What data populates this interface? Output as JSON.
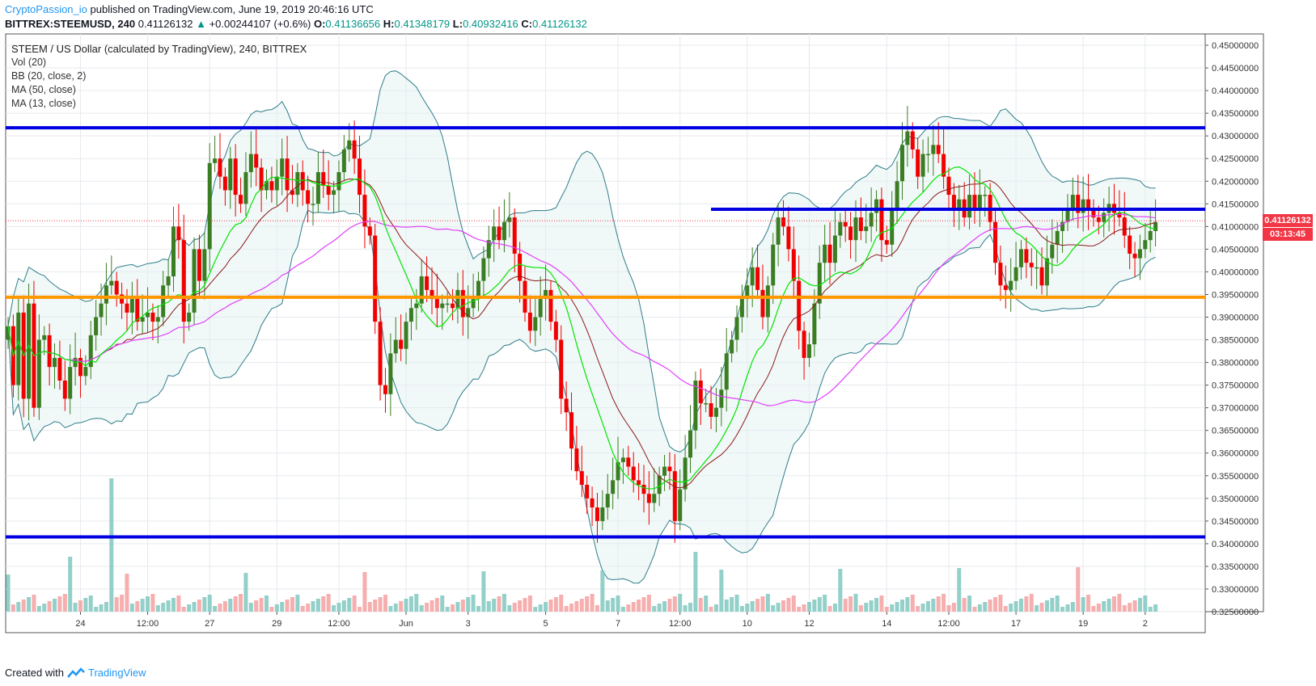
{
  "header": {
    "author": "CryptoPassion_io",
    "published": " published on TradingView.com, June 19, 2019 20:46:16 UTC"
  },
  "symbol_line": {
    "symbol": "BITTREX:STEEMUSD, 240",
    "last": "0.41126132",
    "arrow": "▲",
    "change": "+0.00244107 (+0.6%)",
    "o_label": "O:",
    "o": "0.41136656",
    "h_label": "H:",
    "h": "0.41348179",
    "l_label": "L:",
    "l": "0.40932416",
    "c_label": "C:",
    "c": "0.41126132"
  },
  "legend": {
    "title": "STEEM / US Dollar (calculated by TradingView), 240, BITTREX",
    "vol": "Vol (20)",
    "bb": "BB (20, close, 2)",
    "ma50": "MA (50, close)",
    "ma13": "MA (13, close)"
  },
  "price_tag": {
    "price": "0.41126132",
    "countdown": "03:13:45"
  },
  "footer": {
    "created": "Created with",
    "brand": "TradingView"
  },
  "colors": {
    "up": "#3a7d22",
    "down": "#f00000",
    "blue_line": "#0000e0",
    "orange_line": "#ff9800",
    "bb": "#2e7d8a",
    "ma50": "#e040fb",
    "ma13": "#00e600",
    "ma20": "#8b1a1a",
    "vol_up": "#7fc8c0",
    "vol_down": "#f4a0a0",
    "accent": "#2196f3"
  },
  "chart_data": {
    "type": "candlestick",
    "ylim": [
      0.325,
      0.4525
    ],
    "y_ticks": [
      "0.45000000",
      "0.44500000",
      "0.44000000",
      "0.43500000",
      "0.43000000",
      "0.42500000",
      "0.42000000",
      "0.41500000",
      "0.41000000",
      "0.40500000",
      "0.40000000",
      "0.39500000",
      "0.39000000",
      "0.38500000",
      "0.38000000",
      "0.37500000",
      "0.37000000",
      "0.36500000",
      "0.36000000",
      "0.35500000",
      "0.35000000",
      "0.34500000",
      "0.34000000",
      "0.33500000",
      "0.33000000",
      "0.32500000"
    ],
    "x_ticks": [
      {
        "label": "24",
        "bar": 14
      },
      {
        "label": "12:00",
        "bar": 27
      },
      {
        "label": "27",
        "bar": 39
      },
      {
        "label": "29",
        "bar": 52
      },
      {
        "label": "12:00",
        "bar": 64
      },
      {
        "label": "Jun",
        "bar": 77
      },
      {
        "label": "3",
        "bar": 89
      },
      {
        "label": "5",
        "bar": 104
      },
      {
        "label": "7",
        "bar": 118
      },
      {
        "label": "12:00",
        "bar": 130
      },
      {
        "label": "10",
        "bar": 143
      },
      {
        "label": "12",
        "bar": 155
      },
      {
        "label": "14",
        "bar": 170
      },
      {
        "label": "12:00",
        "bar": 182
      },
      {
        "label": "17",
        "bar": 195
      },
      {
        "label": "19",
        "bar": 208
      },
      {
        "label": "2",
        "bar": 220
      }
    ],
    "candles_close": [
      0.388,
      0.375,
      0.391,
      0.372,
      0.393,
      0.37,
      0.385,
      0.386,
      0.379,
      0.381,
      0.376,
      0.372,
      0.379,
      0.381,
      0.377,
      0.379,
      0.386,
      0.39,
      0.393,
      0.397,
      0.398,
      0.395,
      0.393,
      0.391,
      0.394,
      0.389,
      0.39,
      0.391,
      0.389,
      0.39,
      0.397,
      0.399,
      0.41,
      0.407,
      0.389,
      0.391,
      0.405,
      0.398,
      0.405,
      0.424,
      0.425,
      0.421,
      0.418,
      0.425,
      0.417,
      0.415,
      0.422,
      0.426,
      0.423,
      0.418,
      0.42,
      0.418,
      0.421,
      0.425,
      0.418,
      0.417,
      0.422,
      0.418,
      0.415,
      0.415,
      0.422,
      0.419,
      0.417,
      0.418,
      0.422,
      0.427,
      0.429,
      0.425,
      0.417,
      0.41,
      0.408,
      0.389,
      0.375,
      0.373,
      0.382,
      0.385,
      0.383,
      0.389,
      0.392,
      0.393,
      0.399,
      0.396,
      0.394,
      0.392,
      0.393,
      0.393,
      0.392,
      0.396,
      0.39,
      0.392,
      0.394,
      0.398,
      0.403,
      0.407,
      0.41,
      0.407,
      0.411,
      0.412,
      0.404,
      0.398,
      0.391,
      0.387,
      0.39,
      0.394,
      0.396,
      0.389,
      0.385,
      0.372,
      0.369,
      0.361,
      0.356,
      0.353,
      0.35,
      0.348,
      0.345,
      0.348,
      0.351,
      0.354,
      0.358,
      0.359,
      0.357,
      0.354,
      0.353,
      0.351,
      0.349,
      0.351,
      0.355,
      0.357,
      0.356,
      0.345,
      0.352,
      0.359,
      0.365,
      0.376,
      0.371,
      0.371,
      0.368,
      0.37,
      0.374,
      0.382,
      0.385,
      0.39,
      0.394,
      0.397,
      0.401,
      0.396,
      0.39,
      0.397,
      0.406,
      0.412,
      0.41,
      0.405,
      0.398,
      0.387,
      0.381,
      0.384,
      0.393,
      0.402,
      0.406,
      0.402,
      0.408,
      0.411,
      0.41,
      0.407,
      0.412,
      0.409,
      0.41,
      0.413,
      0.416,
      0.407,
      0.406,
      0.414,
      0.42,
      0.428,
      0.431,
      0.427,
      0.421,
      0.426,
      0.426,
      0.428,
      0.426,
      0.421,
      0.417,
      0.414,
      0.416,
      0.412,
      0.417,
      0.414,
      0.417,
      0.417,
      0.411,
      0.402,
      0.397,
      0.396,
      0.398,
      0.401,
      0.405,
      0.402,
      0.401,
      0.401,
      0.397,
      0.403,
      0.406,
      0.409,
      0.411,
      0.414,
      0.417,
      0.413,
      0.416,
      0.414,
      0.412,
      0.411,
      0.413,
      0.415,
      0.413,
      0.412,
      0.408,
      0.404,
      0.403,
      0.405,
      0.407,
      0.409,
      0.411
    ],
    "horizontal_lines": [
      {
        "price": 0.4318,
        "color": "blue"
      },
      {
        "price": 0.4138,
        "color": "blue",
        "from_bar": 136
      },
      {
        "price": 0.3944,
        "color": "orange"
      },
      {
        "price": 0.3415,
        "color": "blue"
      }
    ],
    "last_price": 0.41126132
  }
}
